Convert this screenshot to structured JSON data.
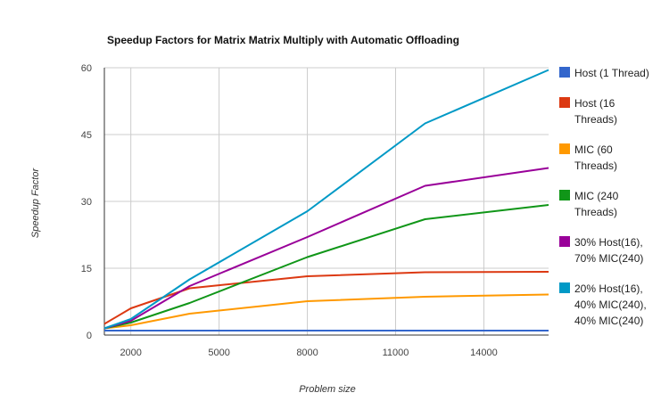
{
  "chart_data": {
    "type": "line",
    "title": "Speedup Factors for Matrix Matrix Multiply with Automatic Offloading",
    "xlabel": "Problem size",
    "ylabel": "Speedup Factor",
    "xlim": [
      1100,
      16200
    ],
    "ylim": [
      0,
      60
    ],
    "xticks": [
      2000,
      5000,
      8000,
      11000,
      14000
    ],
    "xtick_labels": [
      "2000",
      "5000",
      "8000",
      "11000",
      "14000"
    ],
    "yticks": [
      0,
      15,
      30,
      45,
      60
    ],
    "ytick_labels": [
      "0",
      "15",
      "30",
      "45",
      "60"
    ],
    "grid": true,
    "legend_position": "right",
    "x": [
      1100,
      2000,
      4000,
      8000,
      12000,
      16200
    ],
    "series": [
      {
        "name": "Host (1 Thread)",
        "legend_lines": [
          "Host (1 Thread)"
        ],
        "color": "#3366cc",
        "values": [
          1,
          1,
          1,
          1,
          1,
          1
        ]
      },
      {
        "name": "Host (16 Threads)",
        "legend_lines": [
          "Host (16",
          "Threads)"
        ],
        "color": "#dc3912",
        "values": [
          2.5,
          6,
          10.5,
          13.2,
          14.1,
          14.2
        ]
      },
      {
        "name": "MIC (60 Threads)",
        "legend_lines": [
          "MIC (60",
          "Threads)"
        ],
        "color": "#ff9900",
        "values": [
          1.5,
          2.2,
          4.8,
          7.6,
          8.6,
          9.1
        ]
      },
      {
        "name": "MIC (240 Threads)",
        "legend_lines": [
          "MIC (240",
          "Threads)"
        ],
        "color": "#109618",
        "values": [
          1.5,
          2.8,
          7.2,
          17.5,
          26,
          29.2
        ]
      },
      {
        "name": "30% Host(16), 70% MIC(240)",
        "legend_lines": [
          "30% Host(16),",
          "70% MIC(240)"
        ],
        "color": "#990099",
        "values": [
          1.5,
          3.2,
          11,
          22,
          33.5,
          37.5
        ]
      },
      {
        "name": "20% Host(16), 40% MIC(240), 40% MIC(240)",
        "legend_lines": [
          "20% Host(16),",
          "40% MIC(240),",
          "40% MIC(240)"
        ],
        "color": "#0099c6",
        "values": [
          1.5,
          3.6,
          12.5,
          27.8,
          47.5,
          59.5
        ]
      }
    ]
  }
}
